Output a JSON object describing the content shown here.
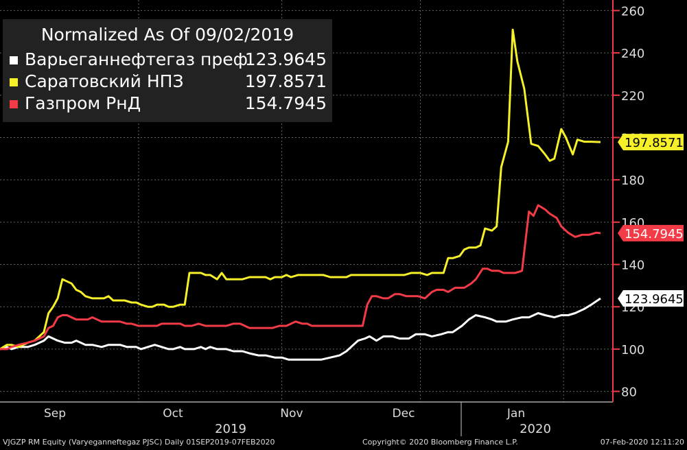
{
  "chart_data": {
    "type": "line",
    "title": "Normalized As Of 09/02/2019",
    "ylim": [
      75,
      265
    ],
    "yticks": [
      80,
      100,
      120,
      140,
      160,
      180,
      200,
      220,
      240,
      260
    ],
    "x_month_labels": [
      "Sep",
      "Oct",
      "Nov",
      "Dec",
      "Jan"
    ],
    "x_year_labels": [
      "2019",
      "2020"
    ],
    "x_start": "2019-09-01",
    "x_end": "2020-02-07",
    "series": [
      {
        "name": "Варьеганнефтегаз преф",
        "last_value": "123.9645",
        "color": "#ffffff",
        "values": [
          [
            0,
            100
          ],
          [
            3,
            101
          ],
          [
            5,
            100
          ],
          [
            8,
            101
          ],
          [
            12,
            101
          ],
          [
            15,
            102
          ],
          [
            19,
            104
          ],
          [
            21,
            106
          ],
          [
            23,
            105
          ],
          [
            25,
            104
          ],
          [
            28,
            103
          ],
          [
            31,
            103
          ],
          [
            33,
            104
          ],
          [
            35,
            103
          ],
          [
            37,
            102
          ],
          [
            40,
            102
          ],
          [
            44,
            101
          ],
          [
            47,
            102
          ],
          [
            52,
            102
          ],
          [
            55,
            101
          ],
          [
            59,
            101
          ],
          [
            61,
            100
          ],
          [
            64,
            101
          ],
          [
            67,
            102
          ],
          [
            70,
            101
          ],
          [
            73,
            100
          ],
          [
            75,
            100
          ],
          [
            78,
            101
          ],
          [
            80,
            100
          ],
          [
            84,
            100
          ],
          [
            87,
            101
          ],
          [
            89,
            100
          ],
          [
            91,
            101
          ],
          [
            94,
            100
          ],
          [
            98,
            100
          ],
          [
            101,
            99
          ],
          [
            105,
            99
          ],
          [
            108,
            98
          ],
          [
            112,
            97
          ],
          [
            115,
            97
          ],
          [
            119,
            96
          ],
          [
            122,
            96
          ],
          [
            125,
            95
          ],
          [
            129,
            95
          ],
          [
            132,
            95
          ],
          [
            135,
            95
          ],
          [
            136,
            95
          ],
          [
            139,
            95
          ],
          [
            143,
            96
          ],
          [
            147,
            97
          ],
          [
            150,
            99
          ],
          [
            153,
            102
          ],
          [
            155,
            104
          ],
          [
            158,
            105
          ],
          [
            160,
            106
          ],
          [
            163,
            104
          ],
          [
            166,
            106
          ],
          [
            170,
            106
          ],
          [
            173,
            105
          ],
          [
            177,
            105
          ],
          [
            180,
            107
          ],
          [
            184,
            107
          ],
          [
            187,
            106
          ],
          [
            191,
            107
          ],
          [
            194,
            108
          ],
          [
            196,
            108
          ],
          [
            200,
            111
          ],
          [
            203,
            114
          ],
          [
            206,
            116
          ],
          [
            210,
            115
          ],
          [
            213,
            114
          ],
          [
            215,
            113
          ],
          [
            219,
            113
          ],
          [
            222,
            114
          ],
          [
            226,
            115
          ],
          [
            229,
            115
          ],
          [
            233,
            117
          ],
          [
            236,
            116
          ],
          [
            240,
            115
          ],
          [
            243,
            116
          ],
          [
            246,
            116
          ],
          [
            249,
            117
          ],
          [
            253,
            119
          ],
          [
            256,
            121
          ],
          [
            260,
            123.96
          ]
        ]
      },
      {
        "name": "Саратовский НПЗ",
        "last_value": "197.8571",
        "color": "#f6f029",
        "values": [
          [
            0,
            100
          ],
          [
            3,
            102
          ],
          [
            5,
            102
          ],
          [
            8,
            101
          ],
          [
            12,
            103
          ],
          [
            15,
            104
          ],
          [
            19,
            108
          ],
          [
            21,
            117
          ],
          [
            23,
            120
          ],
          [
            25,
            124
          ],
          [
            27,
            133
          ],
          [
            29,
            132
          ],
          [
            31,
            131
          ],
          [
            33,
            128
          ],
          [
            35,
            127
          ],
          [
            37,
            125
          ],
          [
            40,
            124
          ],
          [
            42,
            124
          ],
          [
            45,
            124
          ],
          [
            47,
            125
          ],
          [
            49,
            123
          ],
          [
            52,
            123
          ],
          [
            54,
            123
          ],
          [
            57,
            122
          ],
          [
            59,
            122
          ],
          [
            61,
            121
          ],
          [
            64,
            120
          ],
          [
            66,
            120
          ],
          [
            68,
            121
          ],
          [
            71,
            121
          ],
          [
            73,
            120
          ],
          [
            75,
            120
          ],
          [
            78,
            121
          ],
          [
            80,
            121
          ],
          [
            82,
            136
          ],
          [
            85,
            136
          ],
          [
            87,
            136
          ],
          [
            89,
            135
          ],
          [
            91,
            135
          ],
          [
            94,
            133
          ],
          [
            96,
            136
          ],
          [
            98,
            133
          ],
          [
            101,
            133
          ],
          [
            103,
            133
          ],
          [
            105,
            133
          ],
          [
            108,
            134
          ],
          [
            110,
            134
          ],
          [
            112,
            134
          ],
          [
            115,
            134
          ],
          [
            117,
            133
          ],
          [
            119,
            134
          ],
          [
            122,
            134
          ],
          [
            124,
            135
          ],
          [
            126,
            134
          ],
          [
            129,
            135
          ],
          [
            131,
            135
          ],
          [
            133,
            135
          ],
          [
            136,
            135
          ],
          [
            138,
            135
          ],
          [
            140,
            135
          ],
          [
            143,
            134
          ],
          [
            145,
            134
          ],
          [
            147,
            134
          ],
          [
            150,
            134
          ],
          [
            152,
            135
          ],
          [
            154,
            135
          ],
          [
            157,
            135
          ],
          [
            159,
            135
          ],
          [
            161,
            135
          ],
          [
            164,
            135
          ],
          [
            166,
            135
          ],
          [
            168,
            135
          ],
          [
            171,
            135
          ],
          [
            173,
            135
          ],
          [
            175,
            135
          ],
          [
            178,
            136
          ],
          [
            180,
            136
          ],
          [
            182,
            136
          ],
          [
            185,
            135
          ],
          [
            187,
            136
          ],
          [
            189,
            136
          ],
          [
            192,
            136
          ],
          [
            194,
            143
          ],
          [
            196,
            143
          ],
          [
            199,
            144
          ],
          [
            201,
            147
          ],
          [
            203,
            148
          ],
          [
            206,
            148
          ],
          [
            208,
            149
          ],
          [
            210,
            157
          ],
          [
            213,
            156
          ],
          [
            215,
            158
          ],
          [
            217,
            186
          ],
          [
            220,
            198
          ],
          [
            222,
            251
          ],
          [
            224,
            236
          ],
          [
            227,
            223
          ],
          [
            230,
            197
          ],
          [
            233,
            196
          ],
          [
            236,
            192
          ],
          [
            238,
            189
          ],
          [
            240,
            190
          ],
          [
            243,
            204
          ],
          [
            245,
            200
          ],
          [
            248,
            192
          ],
          [
            250,
            199
          ],
          [
            253,
            198
          ],
          [
            256,
            198
          ],
          [
            260,
            197.86
          ]
        ]
      },
      {
        "name": "Газпром РнД",
        "last_value": "154.7945",
        "color": "#f23b47",
        "values": [
          [
            0,
            100
          ],
          [
            3,
            100
          ],
          [
            5,
            101
          ],
          [
            8,
            102
          ],
          [
            12,
            103
          ],
          [
            15,
            104
          ],
          [
            19,
            106
          ],
          [
            21,
            110
          ],
          [
            23,
            111
          ],
          [
            25,
            115
          ],
          [
            27,
            116
          ],
          [
            29,
            116
          ],
          [
            31,
            115
          ],
          [
            33,
            114
          ],
          [
            36,
            114
          ],
          [
            38,
            114
          ],
          [
            40,
            115
          ],
          [
            42,
            114
          ],
          [
            44,
            113
          ],
          [
            47,
            113
          ],
          [
            49,
            113
          ],
          [
            52,
            113
          ],
          [
            55,
            112
          ],
          [
            57,
            112
          ],
          [
            60,
            111
          ],
          [
            62,
            111
          ],
          [
            65,
            111
          ],
          [
            68,
            111
          ],
          [
            70,
            112
          ],
          [
            73,
            112
          ],
          [
            75,
            112
          ],
          [
            78,
            112
          ],
          [
            80,
            111
          ],
          [
            83,
            111
          ],
          [
            86,
            112
          ],
          [
            89,
            111
          ],
          [
            92,
            111
          ],
          [
            95,
            111
          ],
          [
            98,
            111
          ],
          [
            101,
            112
          ],
          [
            104,
            112
          ],
          [
            106,
            111
          ],
          [
            108,
            110
          ],
          [
            111,
            110
          ],
          [
            113,
            110
          ],
          [
            115,
            110
          ],
          [
            118,
            110
          ],
          [
            121,
            111
          ],
          [
            124,
            111
          ],
          [
            126,
            112
          ],
          [
            128,
            113
          ],
          [
            131,
            112
          ],
          [
            133,
            112
          ],
          [
            135,
            111
          ],
          [
            138,
            111
          ],
          [
            140,
            111
          ],
          [
            143,
            111
          ],
          [
            146,
            111
          ],
          [
            148,
            111
          ],
          [
            151,
            111
          ],
          [
            153,
            111
          ],
          [
            155,
            111
          ],
          [
            157,
            111
          ],
          [
            159,
            121
          ],
          [
            161,
            125
          ],
          [
            163,
            125
          ],
          [
            166,
            124
          ],
          [
            168,
            124
          ],
          [
            171,
            126
          ],
          [
            173,
            126
          ],
          [
            176,
            125
          ],
          [
            178,
            125
          ],
          [
            181,
            125
          ],
          [
            184,
            124
          ],
          [
            187,
            127
          ],
          [
            189,
            128
          ],
          [
            192,
            128
          ],
          [
            194,
            127
          ],
          [
            197,
            129
          ],
          [
            199,
            129
          ],
          [
            201,
            129
          ],
          [
            204,
            131
          ],
          [
            206,
            133
          ],
          [
            209,
            138
          ],
          [
            211,
            138
          ],
          [
            213,
            137
          ],
          [
            216,
            137
          ],
          [
            218,
            136
          ],
          [
            221,
            136
          ],
          [
            223,
            136
          ],
          [
            226,
            137
          ],
          [
            229,
            165
          ],
          [
            231,
            163
          ],
          [
            233,
            168
          ],
          [
            236,
            166
          ],
          [
            238,
            164
          ],
          [
            241,
            162
          ],
          [
            243,
            158
          ],
          [
            246,
            155
          ],
          [
            249,
            153
          ],
          [
            252,
            154
          ],
          [
            255,
            154
          ],
          [
            258,
            155
          ],
          [
            260,
            154.79
          ]
        ]
      }
    ]
  },
  "footer": {
    "ticker": "VJGZP RM Equity (Varyeganneftegaz PJSC)  Daily 01SEP2019-07FEB2020",
    "copyright": "Copyright© 2020 Bloomberg Finance L.P.",
    "timestamp": "07-Feb-2020 12:11:20"
  }
}
